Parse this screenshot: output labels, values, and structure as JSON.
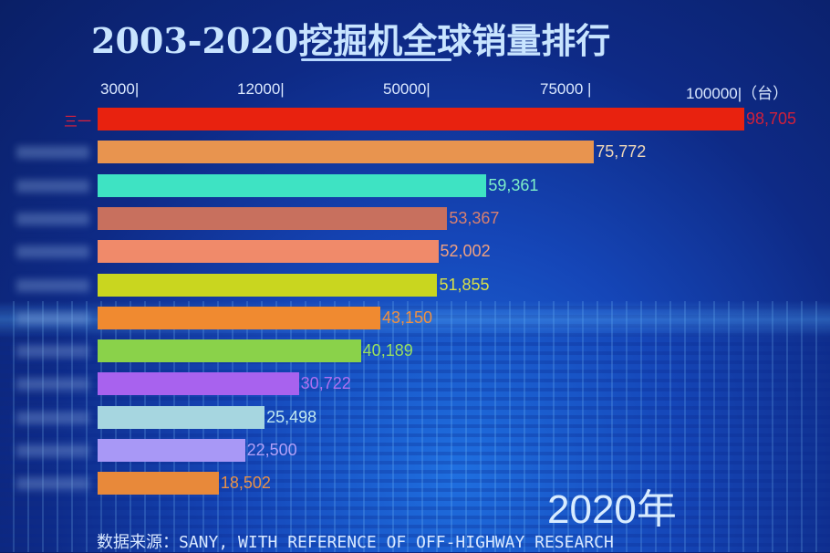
{
  "chart_data": {
    "type": "bar",
    "orientation": "horizontal",
    "title": "2003-2020挖掘机全球销量排行",
    "tick_labels": [
      "3000|",
      "12000|",
      "50000|",
      "75000 |",
      "100000|（台）"
    ],
    "unit": "台",
    "categories": [
      "三一",
      "",
      "",
      "",
      "",
      "",
      "",
      "",
      "",
      "",
      "",
      ""
    ],
    "values": [
      98705,
      75772,
      59361,
      53367,
      52002,
      51855,
      43150,
      40189,
      30722,
      25498,
      22500,
      18502
    ],
    "value_labels": [
      "98,705",
      "75,772",
      "59,361",
      "53,367",
      "52,002",
      "51,855",
      "43,150",
      "40,189",
      "30,722",
      "25,498",
      "22,500",
      "18,502"
    ],
    "colors": [
      "#e8220f",
      "#e8944f",
      "#3ee3c3",
      "#c8705e",
      "#f08a6a",
      "#c9d61f",
      "#f08a30",
      "#8ad24a",
      "#a862ee",
      "#a6d6e0",
      "#a898f6",
      "#e8893a"
    ],
    "label_colors": [
      "#d0203a",
      "#f0d8b8",
      "#7ef0c8",
      "#d88070",
      "#f0a080",
      "#d8e048",
      "#f09040",
      "#98e060",
      "#b070f0",
      "#c0e8f0",
      "#b0a0f8",
      "#e89048"
    ],
    "xlim": [
      0,
      100000
    ],
    "year": "2020年",
    "source": "数据来源：SANY, WITH REFERENCE OF OFF-HIGHWAY RESEARCH"
  }
}
